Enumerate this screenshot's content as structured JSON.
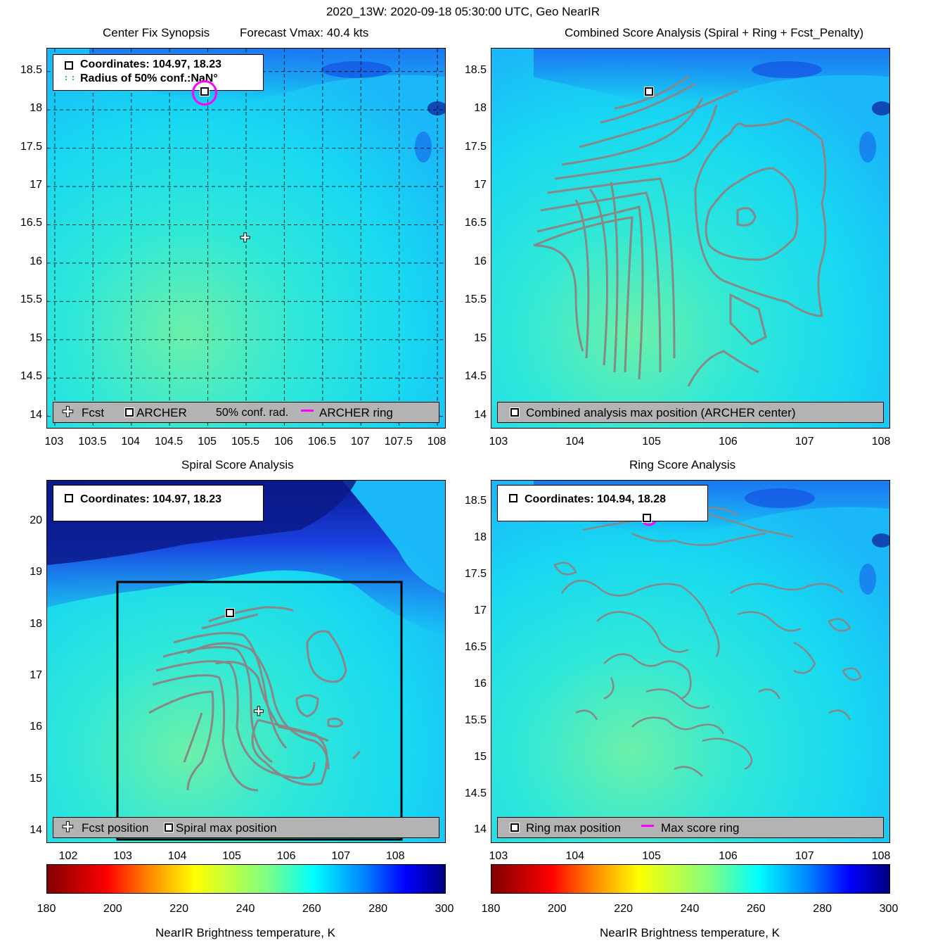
{
  "title": "2020_13W: 2020-09-18 05:30:00 UTC, Geo NearIR",
  "panels": {
    "synopsis": {
      "title": "Center Fix Synopsis",
      "subtitle": "Forecast Vmax: 40.4 kts",
      "info": [
        "Coordinates: 104.97, 18.23",
        "Radius of 50% conf.:NaN°"
      ],
      "legend": [
        "Fcst",
        "ARCHER",
        "50% conf. rad.",
        "ARCHER ring"
      ],
      "xticks": [
        "103",
        "103.5",
        "104",
        "104.5",
        "105",
        "105.5",
        "106",
        "106.5",
        "107",
        "107.5",
        "108"
      ],
      "yticks": [
        "18.5",
        "18",
        "17.5",
        "17",
        "16.5",
        "16",
        "15.5",
        "15",
        "14.5",
        "14"
      ]
    },
    "combined": {
      "title": "Combined Score Analysis (Spiral + Ring + Fcst_Penalty)",
      "legend": [
        "Combined analysis max position (ARCHER center)"
      ],
      "xticks": [
        "103",
        "104",
        "105",
        "106",
        "107",
        "108"
      ],
      "yticks": [
        "18.5",
        "18",
        "17.5",
        "17",
        "16.5",
        "16",
        "15.5",
        "15",
        "14.5",
        "14"
      ]
    },
    "spiral": {
      "title": "Spiral Score Analysis",
      "info": [
        "Coordinates: 104.97, 18.23"
      ],
      "legend": [
        "Fcst position",
        "Spiral max position"
      ],
      "xticks": [
        "102",
        "103",
        "104",
        "105",
        "106",
        "107",
        "108"
      ],
      "yticks": [
        "20",
        "19",
        "18",
        "17",
        "16",
        "15",
        "14"
      ]
    },
    "ring": {
      "title": "Ring Score Analysis",
      "info": [
        "Coordinates: 104.94, 18.28"
      ],
      "legend": [
        "Ring max position",
        "Max score ring"
      ],
      "xticks": [
        "103",
        "104",
        "105",
        "106",
        "107",
        "108"
      ],
      "yticks": [
        "18.5",
        "18",
        "17.5",
        "17",
        "16.5",
        "16",
        "15.5",
        "15",
        "14.5",
        "14"
      ]
    }
  },
  "colorbar": {
    "label": "NearIR Brightness temperature, K",
    "ticks": [
      "180",
      "200",
      "220",
      "240",
      "260",
      "280",
      "300"
    ]
  },
  "chart_data": [
    {
      "type": "heatmap",
      "panel": "synopsis",
      "xlim": [
        102.9,
        108.1
      ],
      "ylim": [
        13.85,
        18.8
      ],
      "points": [
        {
          "name": "Fcst",
          "x": 105.5,
          "y": 16.32
        },
        {
          "name": "ARCHER",
          "x": 104.97,
          "y": 18.23
        }
      ],
      "grid": true
    },
    {
      "type": "heatmap",
      "panel": "combined",
      "xlim": [
        102.9,
        108.1
      ],
      "ylim": [
        13.85,
        18.8
      ],
      "points": [
        {
          "name": "Combined analysis max position",
          "x": 104.97,
          "y": 18.23
        }
      ],
      "contours": true
    },
    {
      "type": "heatmap",
      "panel": "spiral",
      "xlim": [
        101.6,
        108.9
      ],
      "ylim": [
        13.8,
        20.8
      ],
      "points": [
        {
          "name": "Fcst position",
          "x": 105.5,
          "y": 16.32
        },
        {
          "name": "Spiral max position",
          "x": 104.97,
          "y": 18.23
        }
      ],
      "contours": true
    },
    {
      "type": "heatmap",
      "panel": "ring",
      "xlim": [
        102.9,
        108.1
      ],
      "ylim": [
        13.85,
        18.8
      ],
      "points": [
        {
          "name": "Ring max position",
          "x": 104.94,
          "y": 18.28
        }
      ],
      "contours": true
    },
    {
      "type": "colorbar",
      "clim": [
        180,
        300
      ],
      "colormap": "jet"
    }
  ]
}
